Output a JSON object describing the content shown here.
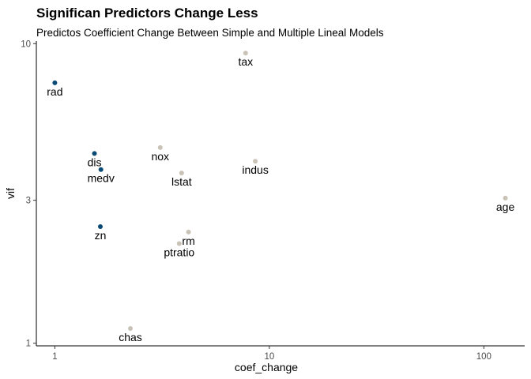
{
  "chart_data": {
    "type": "scatter",
    "title": "Significan Predictors Change Less",
    "subtitle": "Predictos Coefficient Change Between Simple and Multiple Lineal Models",
    "xlabel": "coef_change",
    "ylabel": "vif",
    "x_scale": "log10",
    "y_scale": "log10",
    "xlim": [
      0.82,
      155
    ],
    "ylim": [
      0.98,
      10.2
    ],
    "x_ticks": [
      {
        "value": 1,
        "label": "1"
      },
      {
        "value": 10,
        "label": "10"
      },
      {
        "value": 100,
        "label": "100"
      }
    ],
    "y_ticks": [
      {
        "value": 1,
        "label": "1"
      },
      {
        "value": 3,
        "label": "3"
      },
      {
        "value": 10,
        "label": "10"
      }
    ],
    "grid": false,
    "legend": "none",
    "colors": {
      "significant": "#0b4a74",
      "not_significant": "#c9c3b7"
    },
    "points": [
      {
        "label": "rad",
        "x": 1.0,
        "y": 7.4,
        "group": "significant"
      },
      {
        "label": "dis",
        "x": 1.53,
        "y": 4.3,
        "group": "significant"
      },
      {
        "label": "medv",
        "x": 1.64,
        "y": 3.8,
        "group": "significant"
      },
      {
        "label": "zn",
        "x": 1.63,
        "y": 2.45,
        "group": "significant"
      },
      {
        "label": "tax",
        "x": 7.75,
        "y": 9.3,
        "group": "not_significant"
      },
      {
        "label": "nox",
        "x": 3.1,
        "y": 4.5,
        "group": "not_significant"
      },
      {
        "label": "indus",
        "x": 8.6,
        "y": 4.05,
        "group": "not_significant"
      },
      {
        "label": "lstat",
        "x": 3.9,
        "y": 3.7,
        "group": "not_significant"
      },
      {
        "label": "age",
        "x": 126,
        "y": 3.05,
        "group": "not_significant"
      },
      {
        "label": "rm",
        "x": 4.2,
        "y": 2.35,
        "group": "not_significant"
      },
      {
        "label": "ptratio",
        "x": 3.8,
        "y": 2.15,
        "group": "not_significant"
      },
      {
        "label": "chas",
        "x": 2.25,
        "y": 1.12,
        "group": "not_significant"
      }
    ]
  }
}
